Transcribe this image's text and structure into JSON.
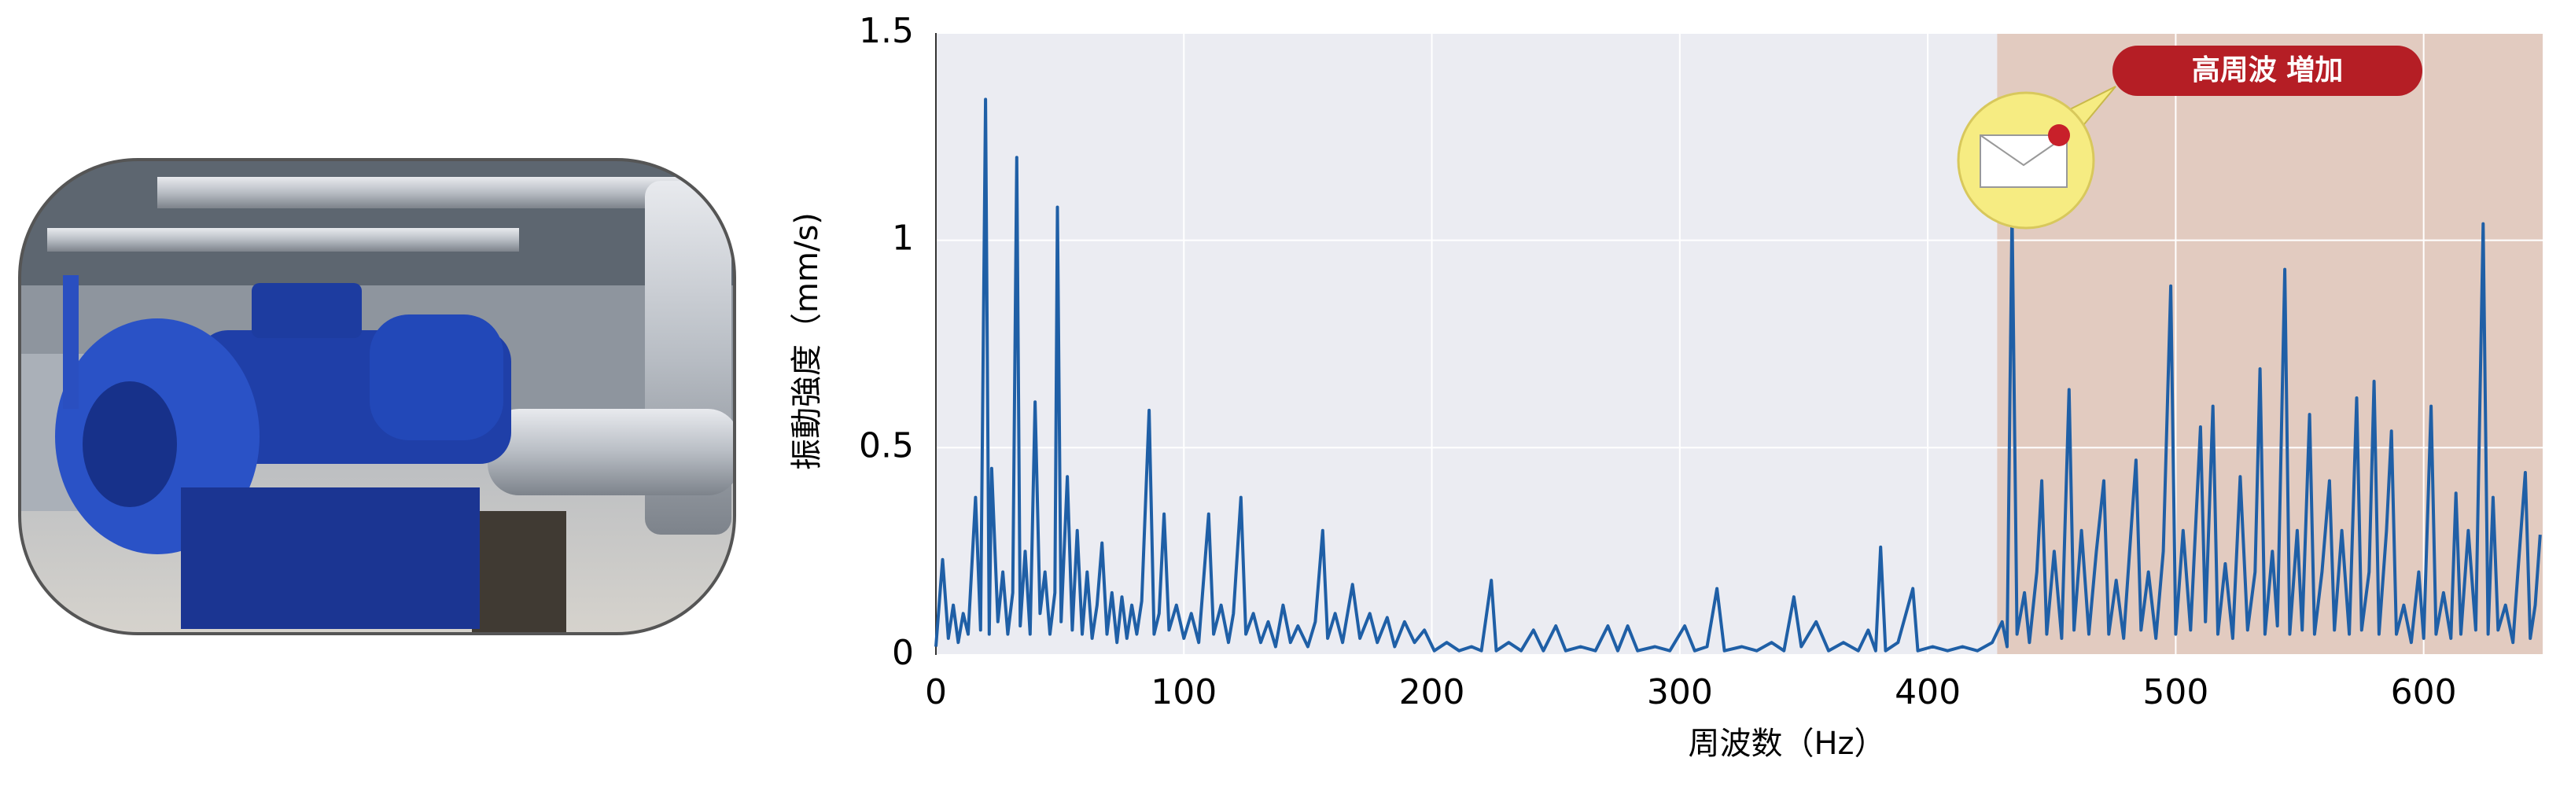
{
  "chart_data": {
    "type": "line",
    "x_label": "周波数（Hz）",
    "y_label": "振動強度（mm/s)",
    "x": [
      0,
      2.7,
      5,
      7,
      9,
      11,
      13,
      16,
      18,
      20,
      21.5,
      22.5,
      25,
      27,
      29,
      31,
      32.6,
      34,
      36,
      38,
      40,
      42,
      44,
      46,
      48,
      49,
      50.5,
      53,
      55,
      57,
      59,
      61,
      63,
      65,
      67,
      69,
      71,
      73,
      75,
      77,
      79,
      81,
      83,
      86,
      88,
      90,
      92,
      94,
      97,
      100,
      103,
      106,
      110,
      112,
      115,
      118,
      120,
      123,
      125,
      128,
      131,
      134,
      137,
      140,
      143,
      146,
      150,
      153,
      156,
      158,
      161,
      164,
      168,
      171,
      175,
      178,
      182,
      185,
      189,
      193,
      197,
      201,
      206,
      211,
      216,
      220,
      224,
      226,
      231,
      236,
      241,
      245,
      250,
      254,
      260,
      266,
      271,
      275,
      279,
      283,
      290,
      296,
      302,
      306,
      311,
      315,
      318,
      325,
      331,
      337,
      342,
      346,
      349,
      355,
      360,
      366,
      372,
      376,
      379,
      381,
      383,
      388,
      394,
      396,
      402,
      408,
      414,
      420,
      426,
      430,
      432,
      434,
      436,
      439,
      441,
      444,
      446,
      448,
      451,
      454,
      457,
      459,
      462,
      465,
      468,
      471,
      473,
      476,
      479,
      482,
      484,
      486,
      489,
      492,
      495,
      498,
      500,
      503,
      506,
      510,
      512,
      515,
      517,
      520,
      523,
      526,
      529,
      532,
      534,
      536,
      539,
      541,
      544,
      546,
      549,
      551,
      554,
      556,
      559,
      562,
      564,
      567,
      570,
      573,
      575,
      578,
      580,
      582,
      585,
      587,
      589,
      592,
      595,
      598,
      600,
      603,
      605,
      608,
      611,
      613,
      615,
      618,
      621,
      624,
      626,
      628,
      630,
      633,
      636,
      638,
      641,
      643,
      645,
      647
    ],
    "series": [
      {
        "color": "#1f5fa6",
        "values": [
          0.02,
          0.23,
          0.04,
          0.12,
          0.03,
          0.1,
          0.05,
          0.38,
          0.06,
          1.34,
          0.05,
          0.45,
          0.08,
          0.2,
          0.05,
          0.15,
          1.2,
          0.07,
          0.25,
          0.05,
          0.61,
          0.1,
          0.2,
          0.05,
          0.15,
          1.08,
          0.08,
          0.43,
          0.06,
          0.3,
          0.05,
          0.2,
          0.04,
          0.12,
          0.27,
          0.05,
          0.15,
          0.03,
          0.14,
          0.04,
          0.12,
          0.05,
          0.13,
          0.59,
          0.05,
          0.1,
          0.34,
          0.06,
          0.12,
          0.04,
          0.1,
          0.03,
          0.34,
          0.05,
          0.12,
          0.03,
          0.1,
          0.38,
          0.05,
          0.1,
          0.03,
          0.08,
          0.02,
          0.12,
          0.03,
          0.07,
          0.02,
          0.08,
          0.3,
          0.04,
          0.1,
          0.03,
          0.17,
          0.04,
          0.1,
          0.03,
          0.09,
          0.02,
          0.08,
          0.03,
          0.06,
          0.01,
          0.03,
          0.01,
          0.02,
          0.01,
          0.18,
          0.01,
          0.03,
          0.01,
          0.06,
          0.01,
          0.07,
          0.01,
          0.02,
          0.01,
          0.07,
          0.01,
          0.07,
          0.01,
          0.02,
          0.01,
          0.07,
          0.01,
          0.02,
          0.16,
          0.01,
          0.02,
          0.01,
          0.03,
          0.01,
          0.14,
          0.02,
          0.08,
          0.01,
          0.03,
          0.01,
          0.06,
          0.01,
          0.26,
          0.01,
          0.03,
          0.16,
          0.01,
          0.02,
          0.01,
          0.02,
          0.01,
          0.03,
          0.08,
          0.02,
          1.07,
          0.05,
          0.15,
          0.03,
          0.2,
          0.42,
          0.05,
          0.25,
          0.04,
          0.64,
          0.06,
          0.3,
          0.05,
          0.25,
          0.42,
          0.05,
          0.18,
          0.04,
          0.3,
          0.47,
          0.06,
          0.2,
          0.04,
          0.25,
          0.89,
          0.05,
          0.3,
          0.06,
          0.55,
          0.08,
          0.6,
          0.05,
          0.22,
          0.04,
          0.43,
          0.06,
          0.2,
          0.69,
          0.05,
          0.25,
          0.07,
          0.93,
          0.05,
          0.3,
          0.06,
          0.58,
          0.05,
          0.2,
          0.42,
          0.06,
          0.3,
          0.05,
          0.62,
          0.06,
          0.2,
          0.66,
          0.05,
          0.3,
          0.54,
          0.05,
          0.12,
          0.03,
          0.2,
          0.04,
          0.6,
          0.05,
          0.15,
          0.04,
          0.39,
          0.05,
          0.3,
          0.06,
          1.04,
          0.05,
          0.38,
          0.06,
          0.12,
          0.03,
          0.2,
          0.44,
          0.04,
          0.12,
          0.29
        ]
      }
    ],
    "xlim": [
      0,
      648
    ],
    "ylim": [
      0,
      1.5
    ],
    "xticks": [
      0,
      100,
      200,
      300,
      400,
      500,
      600
    ],
    "yticks": [
      0,
      0.5,
      1,
      1.5
    ],
    "grid": true,
    "highlight": {
      "from": 428,
      "to": 648,
      "label": "高周波 増加",
      "color": "#e2cbc0"
    }
  }
}
